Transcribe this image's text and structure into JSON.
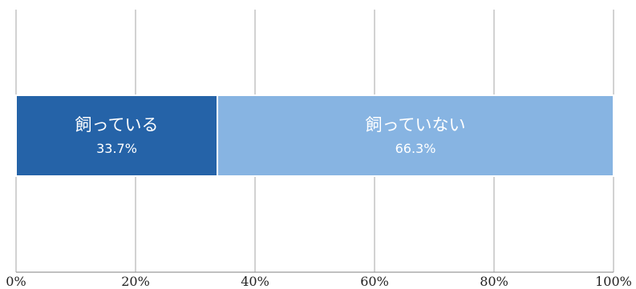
{
  "chart_data": {
    "type": "bar",
    "orientation": "horizontal",
    "stacked": true,
    "categories": [
      ""
    ],
    "series": [
      {
        "name": "飼っている",
        "values": [
          33.7
        ],
        "label": "33.7%",
        "color": "#2563a8"
      },
      {
        "name": "飼っていない",
        "values": [
          66.3
        ],
        "label": "66.3%",
        "color": "#87b4e2"
      }
    ],
    "xlim": [
      0,
      100
    ],
    "x_ticks": [
      "0%",
      "20%",
      "40%",
      "60%",
      "80%",
      "100%"
    ],
    "grid": true,
    "legend": "none"
  }
}
